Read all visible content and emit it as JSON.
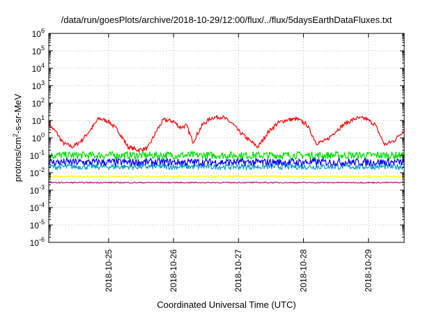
{
  "chart_data": {
    "type": "line",
    "title": "/data/run/goesPlots/archive/2018-10-29/12:00/flux/../flux/5daysEarthDataFluxes.txt",
    "xlabel": "Coordinated Universal Time (UTC)",
    "ylabel": {
      "prefix": "protons/cm",
      "sup": "2",
      "suffix": "-s-sr-MeV"
    },
    "yscale": "log",
    "ylim_exponent": [
      -6,
      6
    ],
    "ytick_exponents": [
      -6,
      -5,
      -4,
      -3,
      -2,
      -1,
      0,
      1,
      2,
      3,
      4,
      5,
      6
    ],
    "ytick_base": "10",
    "xlim_days": [
      24.08,
      29.55
    ],
    "xticks": [
      {
        "label": "2018-10-25",
        "day": 25
      },
      {
        "label": "2018-10-26",
        "day": 26
      },
      {
        "label": "2018-10-27",
        "day": 27
      },
      {
        "label": "2018-10-28",
        "day": 28
      },
      {
        "label": "2018-10-29",
        "day": 29
      }
    ],
    "grid": true,
    "series": [
      {
        "color": "#ff0000",
        "noise": 0.12,
        "x": [
          24.08,
          24.2,
          24.3,
          24.45,
          24.6,
          24.75,
          24.85,
          25.0,
          25.15,
          25.3,
          25.45,
          25.6,
          25.75,
          25.85,
          26.0,
          26.1,
          26.2,
          26.3,
          26.45,
          26.6,
          26.75,
          26.9,
          27.0,
          27.15,
          27.3,
          27.45,
          27.6,
          27.75,
          27.9,
          28.05,
          28.2,
          28.35,
          28.5,
          28.65,
          28.8,
          28.95,
          29.1,
          29.25,
          29.4,
          29.55
        ],
        "y": [
          6,
          2,
          0.5,
          0.3,
          0.8,
          4,
          13,
          9,
          2.5,
          0.3,
          0.2,
          0.25,
          3,
          11,
          9,
          4,
          5,
          0.6,
          6,
          15,
          16,
          7,
          2.5,
          0.8,
          0.3,
          2,
          7,
          11,
          12,
          6,
          0.5,
          0.7,
          2.5,
          7,
          13,
          13,
          6,
          0.4,
          0.7,
          3
        ]
      },
      {
        "color": "#00e000",
        "noise": 0.22,
        "x": [
          24.08,
          29.55
        ],
        "y": [
          0.1,
          0.1
        ]
      },
      {
        "color": "#00a0c0",
        "noise": 0.16,
        "x": [
          24.08,
          29.55
        ],
        "y": [
          0.022,
          0.022
        ]
      },
      {
        "color": "#0000ff",
        "noise": 0.22,
        "x": [
          24.08,
          29.55
        ],
        "y": [
          0.04,
          0.04
        ]
      },
      {
        "color": "#ffff00",
        "noise": 0.05,
        "x": [
          24.08,
          29.55
        ],
        "y": [
          0.006,
          0.006
        ]
      },
      {
        "color": "#a02060",
        "noise": 0.03,
        "x": [
          24.08,
          29.55
        ],
        "y": [
          0.0027,
          0.0027
        ]
      }
    ]
  }
}
